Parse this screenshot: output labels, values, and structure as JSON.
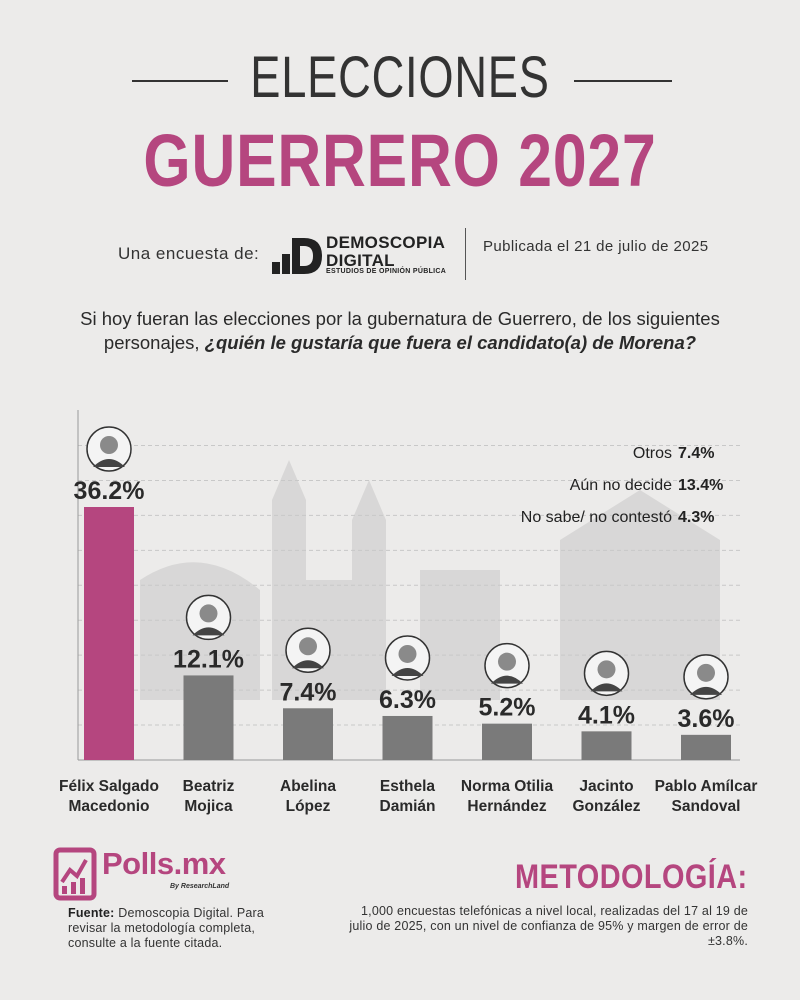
{
  "header": {
    "title_top": "ELECCIONES",
    "title_main": "GUERRERO 2027",
    "survey_by_label": "Una encuesta de:",
    "brand_name_1": "DEMOSCOPIA",
    "brand_name_2": "DIGITAL",
    "brand_sub": "ESTUDIOS DE OPINIÓN PÚBLICA",
    "published": "Publicada el 21 de julio de 2025"
  },
  "question": {
    "plain": "Si hoy fueran las elecciones por la gubernatura de Guerrero, de los siguientes personajes, ",
    "emphasis": "¿quién le gustaría que fuera el candidato(a) de Morena?"
  },
  "others": [
    {
      "label": "Otros",
      "value": "7.4%"
    },
    {
      "label": "Aún no decide",
      "value": "13.4%"
    },
    {
      "label": "No sabe/ no contestó",
      "value": "4.3%"
    }
  ],
  "colors": {
    "accent": "#b5467f",
    "bar_gray": "#7a7a7a",
    "text_dark": "#2a2a2a"
  },
  "chart_data": {
    "type": "bar",
    "categories": [
      "Félix Salgado Macedonio",
      "Beatriz Mojica",
      "Abelina López",
      "Esthela Damián",
      "Norma Otilia Hernández",
      "Jacinto González",
      "Pablo Amílcar Sandoval"
    ],
    "category_lines": [
      [
        "Félix Salgado",
        "Macedonio"
      ],
      [
        "Beatriz",
        "Mojica"
      ],
      [
        "Abelina",
        "López"
      ],
      [
        "Esthela",
        "Damián"
      ],
      [
        "Norma Otilia",
        "Hernández"
      ],
      [
        "Jacinto",
        "González"
      ],
      [
        "Pablo Amílcar",
        "Sandoval"
      ]
    ],
    "values": [
      36.2,
      12.1,
      7.4,
      6.3,
      5.2,
      4.1,
      3.6
    ],
    "value_labels": [
      "36.2%",
      "12.1%",
      "7.4%",
      "6.3%",
      "5.2%",
      "4.1%",
      "3.6%"
    ],
    "highlight_index": 0,
    "ylim": [
      0,
      40
    ],
    "grid": true,
    "unit": "%"
  },
  "footer": {
    "brand": "Polls.mx",
    "brand_sub": "By ResearchLand",
    "fuente_label": "Fuente:",
    "fuente_text": "Demoscopia Digital. Para revisar la metodología completa, consulte a la fuente citada.",
    "metodologia_title": "METODOLOGÍA:",
    "metodologia_text": "1,000 encuestas telefónicas a nivel local, realizadas del 17 al 19 de julio de 2025, con un nivel de confianza de 95% y margen de error de ±3.8%."
  }
}
